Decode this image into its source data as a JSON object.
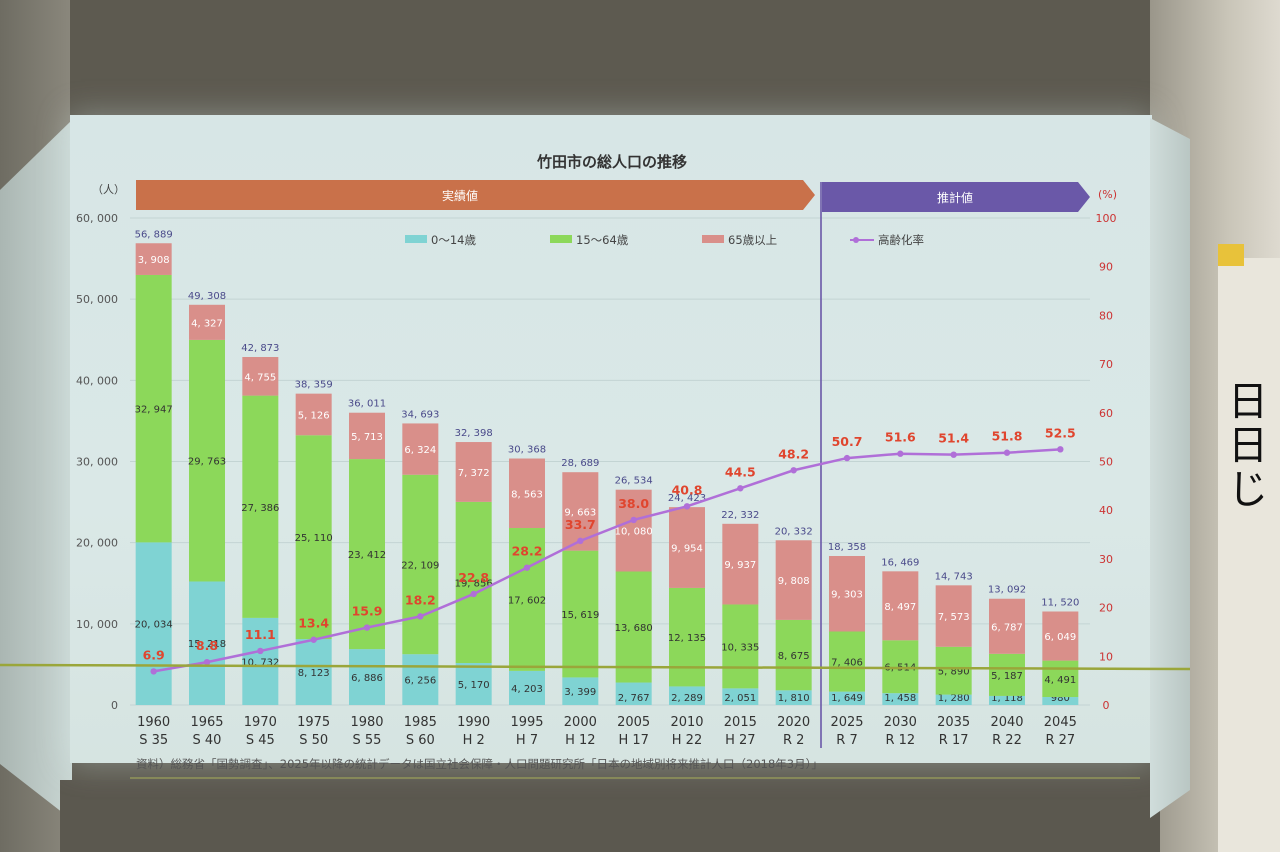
{
  "chart_data": {
    "type": "bar",
    "stacked": true,
    "title": "竹田市の総人口の推移",
    "y_left_unit": "（人）",
    "y_right_unit": "(%)",
    "y_left_ticks": [
      "0",
      "10, 000",
      "20, 000",
      "30, 000",
      "40, 000",
      "50, 000",
      "60, 000"
    ],
    "y_right_ticks": [
      "0",
      "10",
      "20",
      "30",
      "40",
      "50",
      "60",
      "70",
      "80",
      "90",
      "100"
    ],
    "ylim": [
      0,
      60000
    ],
    "ylim_right": [
      0,
      100
    ],
    "grid": true,
    "legend_position": "top",
    "banner_actual": "実績値",
    "banner_projected": "推計値",
    "categories": [
      "1960",
      "1965",
      "1970",
      "1975",
      "1980",
      "1985",
      "1990",
      "1995",
      "2000",
      "2005",
      "2010",
      "2015",
      "2020",
      "2025",
      "2030",
      "2035",
      "2040",
      "2045"
    ],
    "era_labels": [
      "S 35",
      "S 40",
      "S 45",
      "S 50",
      "S 55",
      "S 60",
      "H 2",
      "H 7",
      "H 12",
      "H 17",
      "H 22",
      "H 27",
      "R 2",
      "R 7",
      "R 12",
      "R 17",
      "R 22",
      "R 27"
    ],
    "series": [
      {
        "name": "0～14歳",
        "color": "#7fd3d3",
        "values": [
          20034,
          15218,
          10732,
          8123,
          6886,
          6256,
          5170,
          4203,
          3399,
          2767,
          2289,
          2051,
          1810,
          1649,
          1458,
          1280,
          1118,
          980
        ],
        "labels": [
          "20, 034",
          "15, 218",
          "10, 732",
          "8, 123",
          "6, 886",
          "6, 256",
          "5, 170",
          "4, 203",
          "3, 399",
          "2, 767",
          "2, 289",
          "2, 051",
          "1, 810",
          "1, 649",
          "1, 458",
          "1, 280",
          "1, 118",
          "980"
        ]
      },
      {
        "name": "15～64歳",
        "color": "#8cd85a",
        "values": [
          32947,
          29763,
          27386,
          25110,
          23412,
          22109,
          19856,
          17602,
          15619,
          13680,
          12135,
          10335,
          8675,
          7406,
          6514,
          5890,
          5187,
          4491
        ],
        "labels": [
          "32, 947",
          "29, 763",
          "27, 386",
          "25, 110",
          "23, 412",
          "22, 109",
          "19, 856",
          "17, 602",
          "15, 619",
          "13, 680",
          "12, 135",
          "10, 335",
          "8, 675",
          "7, 406",
          "6, 514",
          "5, 890",
          "5, 187",
          "4, 491"
        ]
      },
      {
        "name": "65歳以上",
        "color": "#d98f8a",
        "values": [
          3908,
          4327,
          4755,
          5126,
          5713,
          6324,
          7372,
          8563,
          9663,
          10080,
          9954,
          9937,
          9808,
          9303,
          8497,
          7573,
          6787,
          6049
        ],
        "labels": [
          "3, 908",
          "4, 327",
          "4, 755",
          "5, 126",
          "5, 713",
          "6, 324",
          "7, 372",
          "8, 563",
          "9, 663",
          "10, 080",
          "9, 954",
          "9, 937",
          "9, 808",
          "9, 303",
          "8, 497",
          "7, 573",
          "6, 787",
          "6, 049"
        ]
      }
    ],
    "totals": [
      "56, 889",
      "49, 308",
      "42, 873",
      "38, 359",
      "36, 011",
      "34, 693",
      "32, 398",
      "30, 368",
      "28, 689",
      "26, 534",
      "24, 423",
      "22, 332",
      "20, 332",
      "18, 358",
      "16, 469",
      "14, 743",
      "13, 092",
      "11, 520"
    ],
    "line_series": {
      "name": "高齢化率",
      "color": "#b06fd8",
      "values": [
        6.9,
        8.8,
        11.1,
        13.4,
        15.9,
        18.2,
        22.8,
        28.2,
        33.7,
        38.0,
        40.8,
        44.5,
        48.2,
        50.7,
        51.6,
        51.4,
        51.8,
        52.5
      ],
      "labels": [
        "6.9",
        "8.8",
        "11.1",
        "13.4",
        "15.9",
        "18.2",
        "22.8",
        "28.2",
        "33.7",
        "38.0",
        "40.8",
        "44.5",
        "48.2",
        "50.7",
        "51.6",
        "51.4",
        "51.8",
        "52.5"
      ]
    },
    "source": "資料）総務省「国勢調査」、2025年以降の統計データは国立社会保障・人口問題研究所「日本の地域別将来推計人口（2018年3月）」"
  },
  "colors": {
    "banner_actual": "#c9714a",
    "banner_projected": "#6a58a8",
    "label_dark": "#3a3a3a",
    "total_label": "#4a4a8a",
    "rate_label": "#e0452e"
  }
}
